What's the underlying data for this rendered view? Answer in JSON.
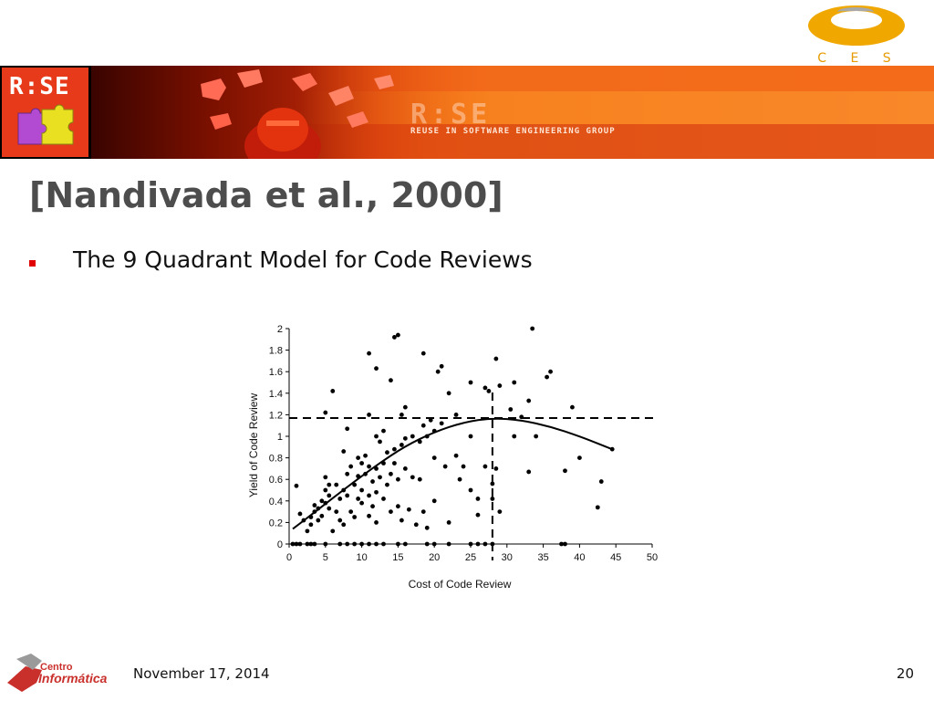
{
  "header": {
    "cesar_logo_text": "C E S A R",
    "rise_logo_text": "R:SE",
    "banner_logo_text": "R:SE",
    "banner_subtitle": "REUSE IN SOFTWARE ENGINEERING GROUP"
  },
  "slide": {
    "title": "[Nandivada et al., 2000]",
    "bullet": "The 9 Quadrant Model for Code Reviews"
  },
  "footer": {
    "logo_line1": "Centro",
    "logo_line2": "Informática",
    "date": "November 17, 2014",
    "page_number": "20"
  },
  "colors": {
    "title": "#4d4d4d",
    "bullet": "#e00000",
    "banner_accent": "#f36611",
    "cesar": "#f0a800"
  },
  "chart_data": {
    "type": "scatter",
    "xlabel": "Cost of Code Review",
    "ylabel": "Yield of Code Review",
    "xlim": [
      0,
      50
    ],
    "ylim": [
      0,
      2
    ],
    "x_ticks": [
      "0",
      "5",
      "10",
      "15",
      "20",
      "25",
      "30",
      "35",
      "40",
      "45",
      "50"
    ],
    "y_ticks": [
      "0",
      "0.2",
      "0.4",
      "0.6",
      "0.8",
      "1",
      "1.2",
      "1.4",
      "1.6",
      "1.8",
      "2"
    ],
    "reference_lines": {
      "x": 28,
      "y": 1.17
    },
    "trend_curve": [
      [
        0.5,
        0.14
      ],
      [
        4,
        0.32
      ],
      [
        8,
        0.53
      ],
      [
        12,
        0.73
      ],
      [
        16,
        0.91
      ],
      [
        20,
        1.04
      ],
      [
        24,
        1.13
      ],
      [
        28,
        1.17
      ],
      [
        32,
        1.15
      ],
      [
        36,
        1.09
      ],
      [
        40,
        1.0
      ],
      [
        44.5,
        0.88
      ]
    ],
    "points": [
      [
        0.5,
        0
      ],
      [
        1,
        0
      ],
      [
        1.5,
        0
      ],
      [
        2.5,
        0
      ],
      [
        3,
        0
      ],
      [
        3.5,
        0
      ],
      [
        5,
        0
      ],
      [
        7,
        0
      ],
      [
        8,
        0
      ],
      [
        9,
        0
      ],
      [
        10,
        0
      ],
      [
        11,
        0
      ],
      [
        12,
        0
      ],
      [
        13,
        0
      ],
      [
        15,
        0
      ],
      [
        16,
        0
      ],
      [
        19,
        0
      ],
      [
        20,
        0
      ],
      [
        22,
        0
      ],
      [
        25,
        0
      ],
      [
        26,
        0
      ],
      [
        27,
        0
      ],
      [
        28,
        0
      ],
      [
        37.5,
        0
      ],
      [
        38,
        0
      ],
      [
        1,
        0.54
      ],
      [
        1.5,
        0.28
      ],
      [
        2,
        0.22
      ],
      [
        2.5,
        0.12
      ],
      [
        3,
        0.18
      ],
      [
        3,
        0.25
      ],
      [
        3.5,
        0.3
      ],
      [
        3.5,
        0.36
      ],
      [
        4,
        0.22
      ],
      [
        4,
        0.33
      ],
      [
        4.5,
        0.4
      ],
      [
        4.5,
        0.26
      ],
      [
        5,
        0.62
      ],
      [
        5,
        0.5
      ],
      [
        5,
        0.38
      ],
      [
        5.5,
        0.55
      ],
      [
        5.5,
        0.45
      ],
      [
        5.5,
        0.33
      ],
      [
        6,
        0.12
      ],
      [
        6.5,
        0.55
      ],
      [
        6.5,
        0.3
      ],
      [
        7,
        0.42
      ],
      [
        7,
        0.22
      ],
      [
        7.5,
        0.86
      ],
      [
        7.5,
        0.5
      ],
      [
        7.5,
        0.18
      ],
      [
        8,
        1.07
      ],
      [
        8,
        0.65
      ],
      [
        8,
        0.45
      ],
      [
        8.5,
        0.72
      ],
      [
        8.5,
        0.3
      ],
      [
        9,
        0.55
      ],
      [
        9,
        0.25
      ],
      [
        9.5,
        0.8
      ],
      [
        9.5,
        0.63
      ],
      [
        9.5,
        0.42
      ],
      [
        10,
        0.75
      ],
      [
        10,
        0.5
      ],
      [
        10,
        0.38
      ],
      [
        10.5,
        0.82
      ],
      [
        10.5,
        0.65
      ],
      [
        11,
        1.2
      ],
      [
        11,
        0.72
      ],
      [
        11,
        0.45
      ],
      [
        11,
        0.26
      ],
      [
        11.5,
        0.58
      ],
      [
        11.5,
        0.35
      ],
      [
        12,
        1.0
      ],
      [
        12,
        0.7
      ],
      [
        12,
        0.48
      ],
      [
        12,
        0.2
      ],
      [
        12.5,
        0.95
      ],
      [
        12.5,
        0.62
      ],
      [
        13,
        1.05
      ],
      [
        13,
        0.75
      ],
      [
        13,
        0.42
      ],
      [
        13.5,
        0.85
      ],
      [
        13.5,
        0.55
      ],
      [
        14,
        1.52
      ],
      [
        14,
        0.65
      ],
      [
        14,
        0.3
      ],
      [
        14.5,
        0.88
      ],
      [
        14.5,
        0.75
      ],
      [
        15,
        0.6
      ],
      [
        15,
        0.35
      ],
      [
        15.5,
        1.2
      ],
      [
        15.5,
        0.92
      ],
      [
        15.5,
        0.22
      ],
      [
        16,
        1.27
      ],
      [
        16,
        0.98
      ],
      [
        16,
        0.7
      ],
      [
        16.5,
        0.32
      ],
      [
        17,
        1.0
      ],
      [
        17,
        0.62
      ],
      [
        17.5,
        0.18
      ],
      [
        18,
        0.95
      ],
      [
        18,
        0.6
      ],
      [
        18.5,
        1.1
      ],
      [
        18.5,
        0.3
      ],
      [
        19,
        1.0
      ],
      [
        19,
        0.15
      ],
      [
        19.5,
        1.15
      ],
      [
        20,
        1.05
      ],
      [
        20,
        0.8
      ],
      [
        20,
        0.4
      ],
      [
        20.5,
        1.6
      ],
      [
        21,
        1.65
      ],
      [
        21,
        1.12
      ],
      [
        21.5,
        0.72
      ],
      [
        22,
        1.4
      ],
      [
        22,
        0.2
      ],
      [
        23,
        1.2
      ],
      [
        23,
        0.82
      ],
      [
        23.5,
        0.6
      ],
      [
        24,
        0.72
      ],
      [
        25,
        1.5
      ],
      [
        25,
        1.0
      ],
      [
        25,
        0.5
      ],
      [
        26,
        0.42
      ],
      [
        26,
        0.27
      ],
      [
        27,
        1.45
      ],
      [
        27,
        0.72
      ],
      [
        27.5,
        1.42
      ],
      [
        28,
        0.56
      ],
      [
        28,
        0.42
      ],
      [
        28.5,
        1.72
      ],
      [
        28.5,
        0.7
      ],
      [
        29,
        1.47
      ],
      [
        29,
        0.3
      ],
      [
        30.5,
        1.25
      ],
      [
        31,
        1.5
      ],
      [
        31,
        1.0
      ],
      [
        32,
        1.18
      ],
      [
        33,
        1.33
      ],
      [
        33,
        0.67
      ],
      [
        33.5,
        2.0
      ],
      [
        34,
        1.0
      ],
      [
        35.5,
        1.55
      ],
      [
        36,
        1.6
      ],
      [
        38,
        0.68
      ],
      [
        39,
        1.27
      ],
      [
        40,
        0.8
      ],
      [
        42.5,
        0.34
      ],
      [
        43,
        0.58
      ],
      [
        44.5,
        0.88
      ],
      [
        5,
        1.22
      ],
      [
        6,
        1.42
      ],
      [
        11,
        1.77
      ],
      [
        12,
        1.63
      ],
      [
        14.5,
        1.92
      ],
      [
        15,
        1.94
      ],
      [
        18.5,
        1.77
      ]
    ]
  }
}
